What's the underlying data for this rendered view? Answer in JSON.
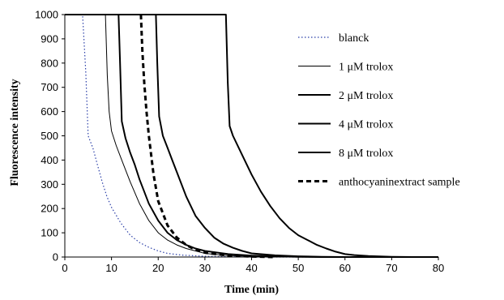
{
  "chart_data": {
    "type": "line",
    "title": "",
    "xlabel": "Time (min)",
    "ylabel": "Fluorescence  intensity",
    "xlim": [
      0,
      80
    ],
    "ylim": [
      0,
      1000
    ],
    "xticks": [
      0,
      10,
      20,
      30,
      40,
      50,
      60,
      70,
      80
    ],
    "yticks": [
      0,
      100,
      200,
      300,
      400,
      500,
      600,
      700,
      800,
      900,
      1000
    ],
    "grid": false,
    "legend_position": "right",
    "series": [
      {
        "name": "blanck",
        "style": "dotted",
        "color": "#2b3fa8",
        "width": 1.2,
        "points": [
          [
            0,
            1000
          ],
          [
            3.8,
            1000
          ],
          [
            4.5,
            760
          ],
          [
            5,
            500
          ],
          [
            6,
            450
          ],
          [
            7,
            380
          ],
          [
            8,
            310
          ],
          [
            9,
            250
          ],
          [
            10,
            205
          ],
          [
            12,
            140
          ],
          [
            14,
            90
          ],
          [
            16,
            60
          ],
          [
            18,
            40
          ],
          [
            20,
            25
          ],
          [
            22,
            15
          ],
          [
            25,
            8
          ],
          [
            30,
            3
          ],
          [
            35,
            1
          ],
          [
            40,
            0
          ],
          [
            80,
            0
          ]
        ]
      },
      {
        "name": "1 μM trolox",
        "style": "solid",
        "color": "#000000",
        "width": 1.0,
        "points": [
          [
            0,
            1000
          ],
          [
            8.7,
            1000
          ],
          [
            9.1,
            750
          ],
          [
            9.5,
            600
          ],
          [
            10,
            520
          ],
          [
            11,
            460
          ],
          [
            12,
            410
          ],
          [
            13,
            360
          ],
          [
            14,
            310
          ],
          [
            16,
            220
          ],
          [
            18,
            150
          ],
          [
            20,
            100
          ],
          [
            22,
            70
          ],
          [
            24,
            50
          ],
          [
            26,
            35
          ],
          [
            28,
            25
          ],
          [
            30,
            15
          ],
          [
            35,
            6
          ],
          [
            40,
            3
          ],
          [
            45,
            1
          ],
          [
            50,
            0
          ],
          [
            80,
            0
          ]
        ]
      },
      {
        "name": "2 μM trolox",
        "style": "solid",
        "color": "#000000",
        "width": 2.0,
        "points": [
          [
            0,
            1000
          ],
          [
            11.5,
            1000
          ],
          [
            11.8,
            820
          ],
          [
            12.2,
            560
          ],
          [
            13,
            490
          ],
          [
            14,
            430
          ],
          [
            15,
            380
          ],
          [
            16,
            320
          ],
          [
            17,
            270
          ],
          [
            18,
            220
          ],
          [
            20,
            150
          ],
          [
            22,
            100
          ],
          [
            24,
            70
          ],
          [
            26,
            50
          ],
          [
            28,
            35
          ],
          [
            30,
            25
          ],
          [
            35,
            12
          ],
          [
            40,
            6
          ],
          [
            45,
            3
          ],
          [
            50,
            1
          ],
          [
            55,
            0
          ],
          [
            80,
            0
          ]
        ]
      },
      {
        "name": "4 μM trolox",
        "style": "solid",
        "color": "#000000",
        "width": 2.0,
        "points": [
          [
            0,
            1000
          ],
          [
            19.5,
            1000
          ],
          [
            19.8,
            800
          ],
          [
            20.2,
            580
          ],
          [
            21,
            500
          ],
          [
            22,
            450
          ],
          [
            23,
            400
          ],
          [
            24,
            350
          ],
          [
            26,
            250
          ],
          [
            28,
            170
          ],
          [
            30,
            120
          ],
          [
            32,
            80
          ],
          [
            34,
            55
          ],
          [
            36,
            38
          ],
          [
            38,
            25
          ],
          [
            40,
            15
          ],
          [
            45,
            7
          ],
          [
            50,
            3
          ],
          [
            55,
            1
          ],
          [
            60,
            0
          ],
          [
            80,
            0
          ]
        ]
      },
      {
        "name": "8 μM trolox",
        "style": "solid",
        "color": "#000000",
        "width": 2.0,
        "points": [
          [
            0,
            1000
          ],
          [
            34.5,
            1000
          ],
          [
            34.9,
            720
          ],
          [
            35.3,
            540
          ],
          [
            36,
            500
          ],
          [
            38,
            420
          ],
          [
            40,
            340
          ],
          [
            42,
            270
          ],
          [
            44,
            210
          ],
          [
            46,
            160
          ],
          [
            48,
            120
          ],
          [
            50,
            90
          ],
          [
            52,
            70
          ],
          [
            54,
            50
          ],
          [
            56,
            35
          ],
          [
            58,
            22
          ],
          [
            60,
            12
          ],
          [
            62,
            8
          ],
          [
            65,
            4
          ],
          [
            70,
            1
          ],
          [
            75,
            0
          ],
          [
            80,
            0
          ]
        ]
      },
      {
        "name": "anthocyaninextract sample",
        "style": "dashed",
        "color": "#000000",
        "width": 3.0,
        "points": [
          [
            16.3,
            1000
          ],
          [
            16.6,
            850
          ],
          [
            17,
            720
          ],
          [
            17.5,
            600
          ],
          [
            18,
            500
          ],
          [
            18.5,
            420
          ],
          [
            19,
            340
          ],
          [
            20,
            230
          ],
          [
            22,
            130
          ],
          [
            24,
            80
          ],
          [
            26,
            50
          ],
          [
            28,
            30
          ],
          [
            30,
            18
          ],
          [
            35,
            6
          ],
          [
            40,
            2
          ],
          [
            45,
            0
          ]
        ]
      }
    ]
  }
}
